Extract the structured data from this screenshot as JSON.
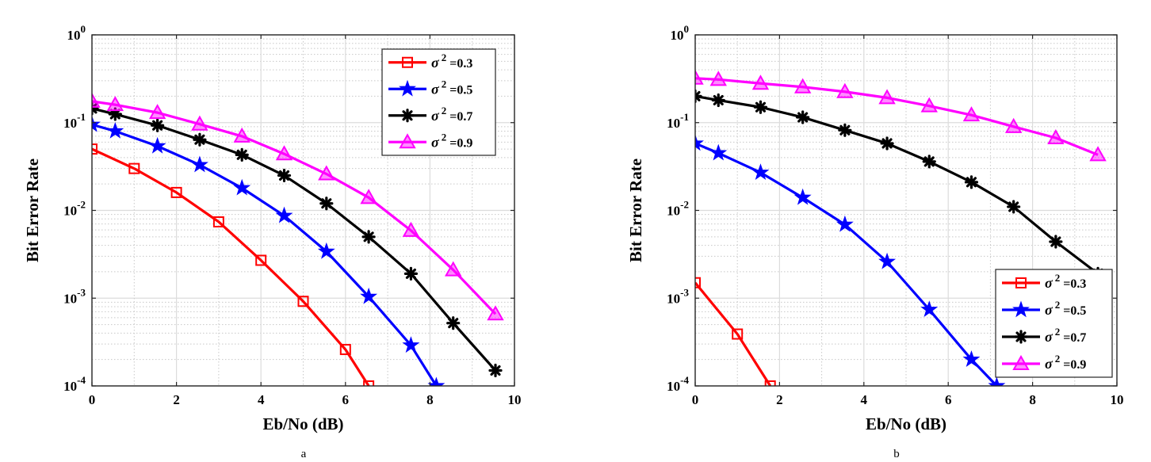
{
  "chart_data": [
    {
      "type": "line",
      "caption": "a",
      "xlabel": "Eb/No (dB)",
      "ylabel": "Bit Error Rate",
      "xlim": [
        0,
        10
      ],
      "ylim": [
        0.0001,
        1
      ],
      "yscale": "log",
      "grid": true,
      "minor_grid": true,
      "legend_position": "top-right",
      "x_ticks": [
        "0",
        "2",
        "4",
        "6",
        "8",
        "10"
      ],
      "y_ticks": [
        {
          "base": "10",
          "exp": "0"
        },
        {
          "base": "10",
          "exp": "-1"
        },
        {
          "base": "10",
          "exp": "-2"
        },
        {
          "base": "10",
          "exp": "-3"
        },
        {
          "base": "10",
          "exp": "-4"
        }
      ],
      "series": [
        {
          "name_symbol": "σ",
          "name_sup": "2",
          "name_value": " =0.3",
          "color": "#ff0000",
          "marker": "square",
          "x": [
            0,
            1,
            2,
            3,
            4,
            5,
            6,
            6.55
          ],
          "y": [
            0.05,
            0.03,
            0.016,
            0.0074,
            0.0027,
            0.00092,
            0.00026,
            0.0001
          ]
        },
        {
          "name_symbol": "σ",
          "name_sup": "2",
          "name_value": " =0.5",
          "color": "#0000ff",
          "marker": "star",
          "x": [
            0,
            0.55,
            1.55,
            2.55,
            3.55,
            4.55,
            5.55,
            6.55,
            7.55,
            8.15
          ],
          "y": [
            0.095,
            0.08,
            0.054,
            0.033,
            0.018,
            0.0087,
            0.0034,
            0.00104,
            0.00029,
            0.0001
          ]
        },
        {
          "name_symbol": "σ",
          "name_sup": "2",
          "name_value": " =0.7",
          "color": "#000000",
          "marker": "asterisk",
          "x": [
            0,
            0.55,
            1.55,
            2.55,
            3.55,
            4.55,
            5.55,
            6.55,
            7.55,
            8.55,
            9.55
          ],
          "y": [
            0.145,
            0.125,
            0.093,
            0.064,
            0.043,
            0.025,
            0.012,
            0.005,
            0.0019,
            0.00052,
            0.00015
          ]
        },
        {
          "name_symbol": "σ",
          "name_sup": "2",
          "name_value": " =0.9",
          "color": "#ff00ff",
          "marker": "triangle",
          "x": [
            0,
            0.55,
            1.55,
            2.55,
            3.55,
            4.55,
            5.55,
            6.55,
            7.55,
            8.55,
            9.55
          ],
          "y": [
            0.175,
            0.16,
            0.13,
            0.096,
            0.07,
            0.044,
            0.026,
            0.014,
            0.0059,
            0.0021,
            0.00066
          ]
        }
      ]
    },
    {
      "type": "line",
      "caption": "b",
      "xlabel": "Eb/No (dB)",
      "ylabel": "Bit Error Rate",
      "xlim": [
        0,
        10
      ],
      "ylim": [
        0.0001,
        1
      ],
      "yscale": "log",
      "grid": true,
      "minor_grid": true,
      "legend_position": "bottom-right",
      "x_ticks": [
        "0",
        "2",
        "4",
        "6",
        "8",
        "10"
      ],
      "y_ticks": [
        {
          "base": "10",
          "exp": "0"
        },
        {
          "base": "10",
          "exp": "-1"
        },
        {
          "base": "10",
          "exp": "-2"
        },
        {
          "base": "10",
          "exp": "-3"
        },
        {
          "base": "10",
          "exp": "-4"
        }
      ],
      "series": [
        {
          "name_symbol": "σ",
          "name_sup": "2",
          "name_value": " =0.3",
          "color": "#ff0000",
          "marker": "square",
          "x": [
            0,
            1,
            1.78
          ],
          "y": [
            0.0015,
            0.00039,
            0.0001
          ]
        },
        {
          "name_symbol": "σ",
          "name_sup": "2",
          "name_value": " =0.5",
          "color": "#0000ff",
          "marker": "star",
          "x": [
            0,
            0.55,
            1.55,
            2.55,
            3.55,
            4.55,
            5.55,
            6.55,
            7.15
          ],
          "y": [
            0.058,
            0.045,
            0.027,
            0.014,
            0.0069,
            0.0026,
            0.00074,
            0.0002,
            0.0001
          ]
        },
        {
          "name_symbol": "σ",
          "name_sup": "2",
          "name_value": " =0.7",
          "color": "#000000",
          "marker": "asterisk",
          "x": [
            0,
            0.55,
            1.55,
            2.55,
            3.55,
            4.55,
            5.55,
            6.55,
            7.55,
            8.55,
            9.55
          ],
          "y": [
            0.2,
            0.18,
            0.15,
            0.115,
            0.082,
            0.058,
            0.036,
            0.021,
            0.011,
            0.0044,
            0.0019
          ]
        },
        {
          "name_symbol": "σ",
          "name_sup": "2",
          "name_value": " =0.9",
          "color": "#ff00ff",
          "marker": "triangle",
          "x": [
            0,
            0.55,
            1.55,
            2.55,
            3.55,
            4.55,
            5.55,
            6.55,
            7.55,
            8.55,
            9.55
          ],
          "y": [
            0.32,
            0.31,
            0.28,
            0.255,
            0.225,
            0.192,
            0.155,
            0.122,
            0.09,
            0.067,
            0.043
          ]
        }
      ]
    }
  ]
}
